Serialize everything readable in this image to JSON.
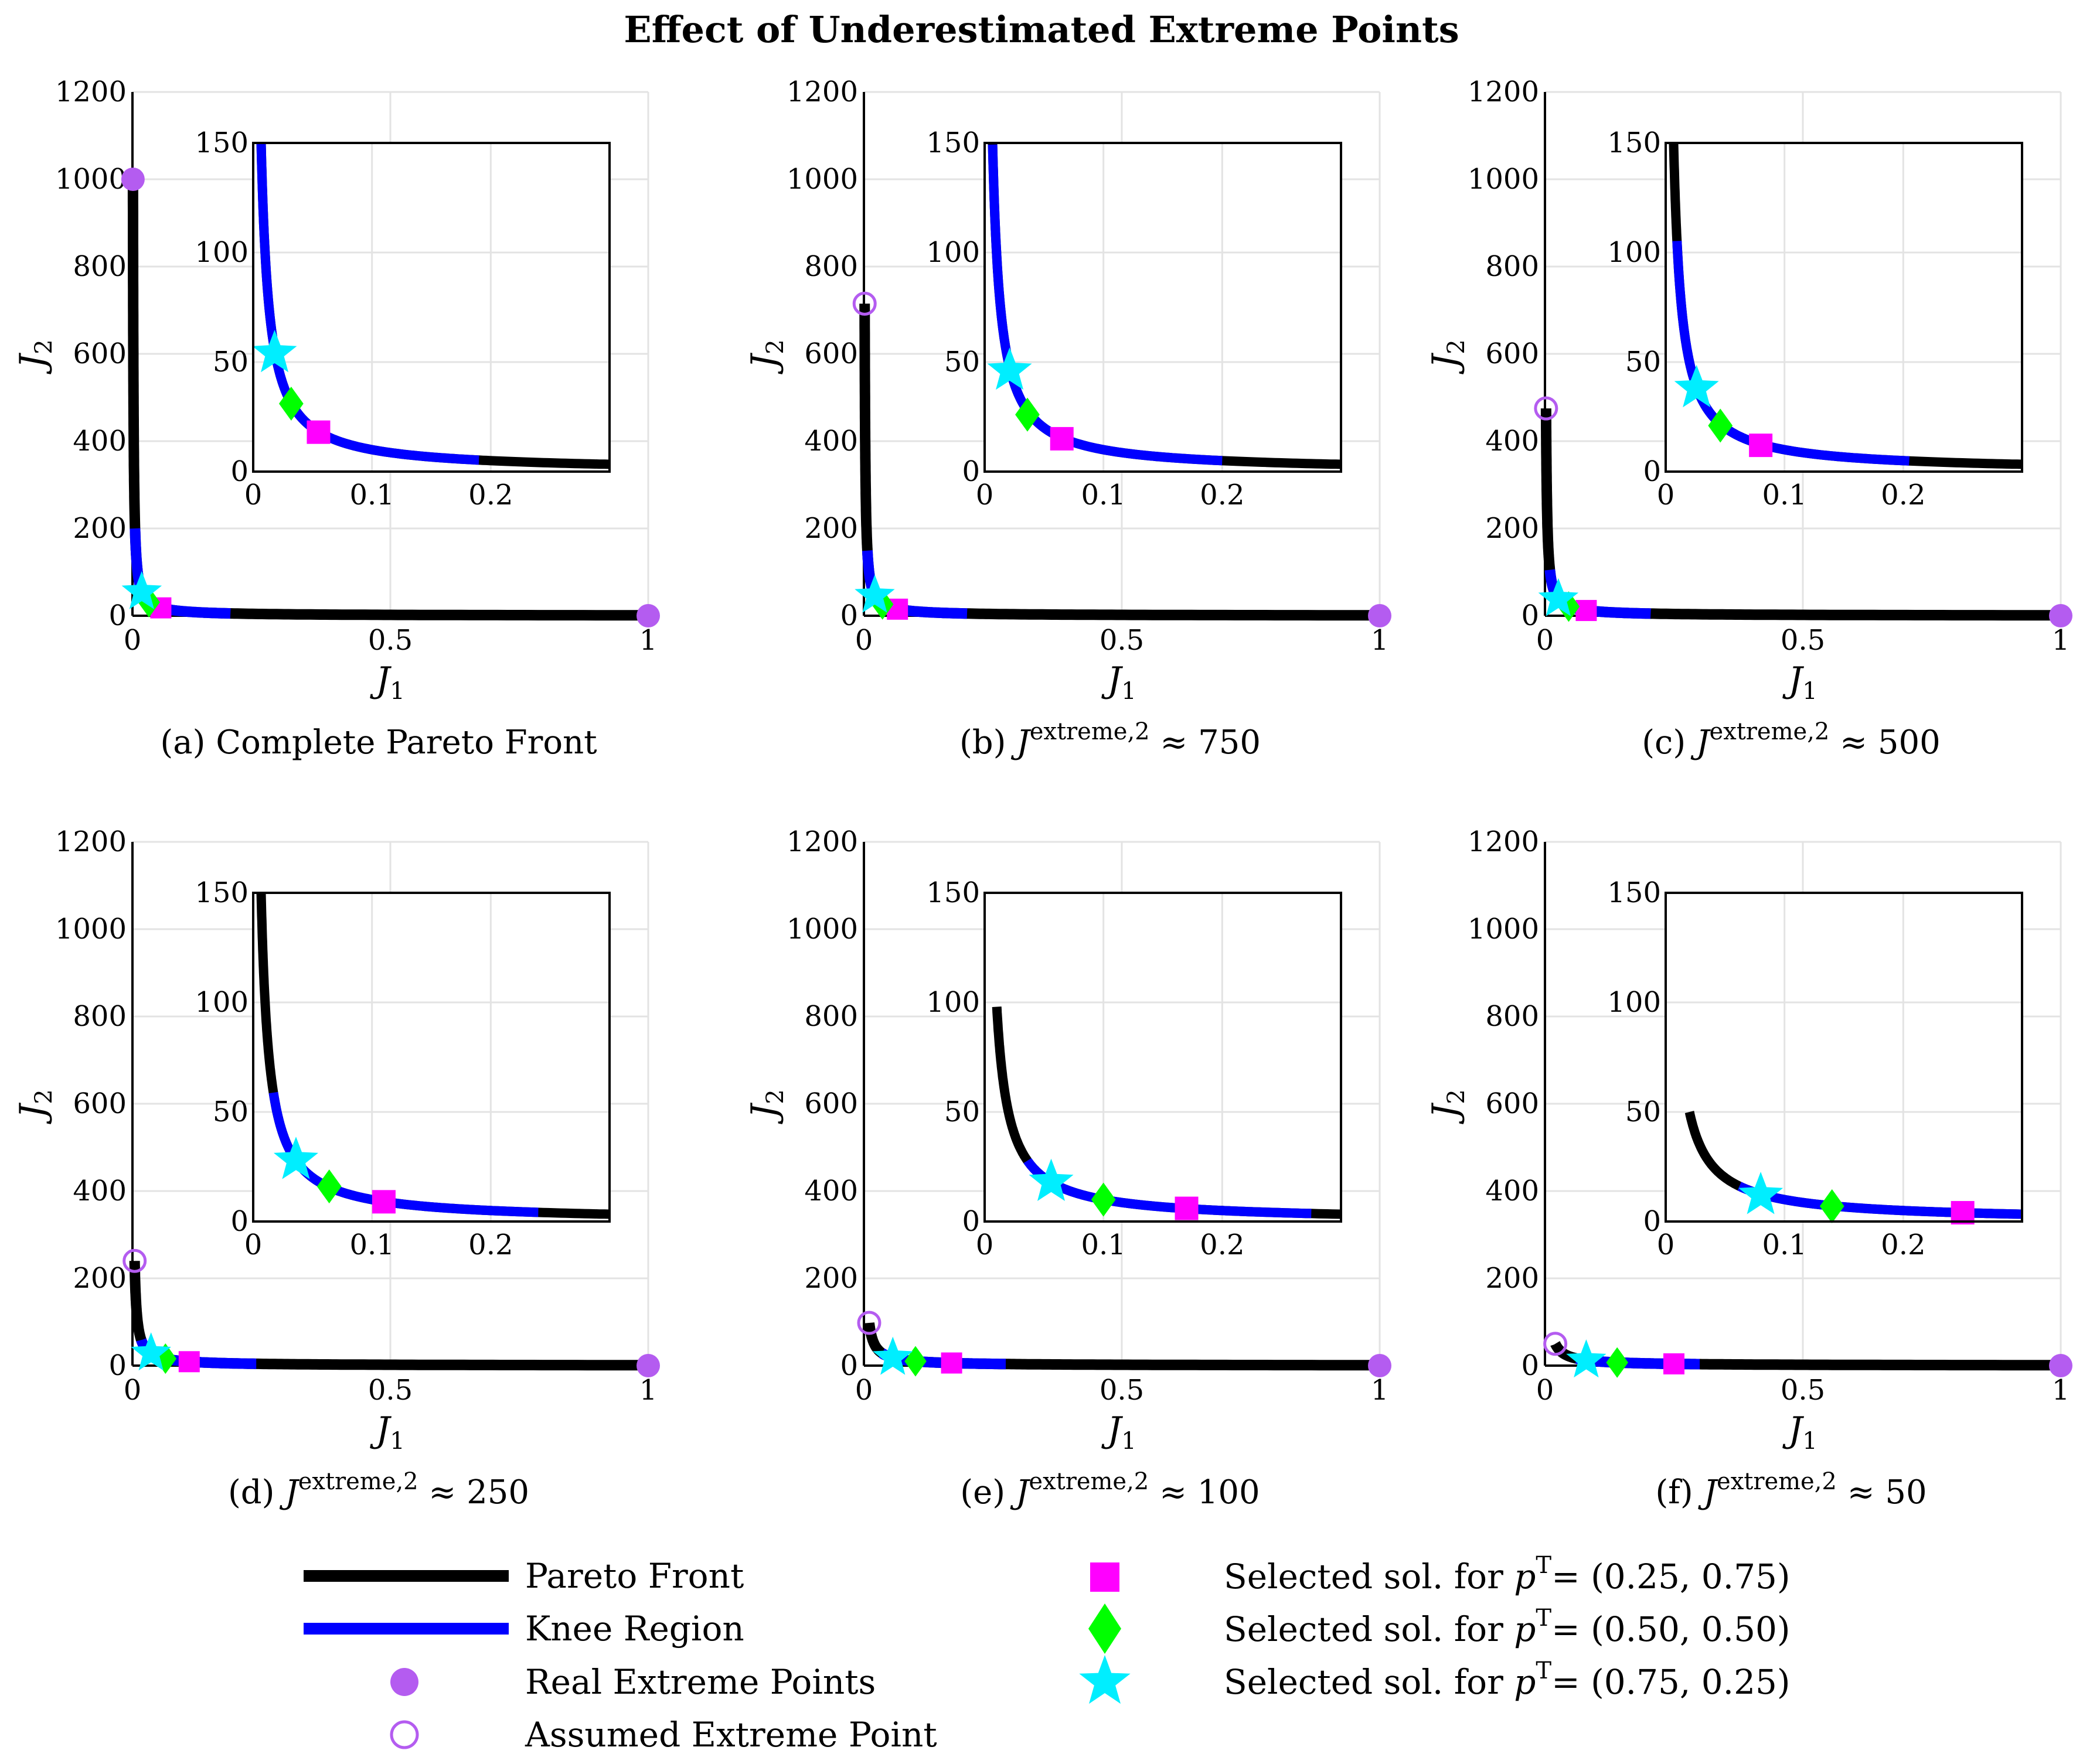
{
  "title": "Effect of Underestimated Extreme Points",
  "chart_data": {
    "type": "line",
    "title": "Effect of Underestimated Extreme Points",
    "xlabel": "J_1",
    "ylabel": "J_2",
    "main_axes": {
      "xlim": [
        0,
        1
      ],
      "ylim": [
        0,
        1200
      ],
      "xticks": [
        "0",
        "0.5",
        "1"
      ],
      "yticks": [
        "0",
        "200",
        "400",
        "600",
        "800",
        "1000",
        "1200"
      ]
    },
    "inset_axes": {
      "xlim": [
        0,
        0.3
      ],
      "ylim": [
        0,
        150
      ],
      "xticks": [
        "0",
        "0.1",
        "0.2"
      ],
      "yticks": [
        "0",
        "50",
        "100",
        "150"
      ]
    },
    "pareto_front": {
      "formula": "J2 = 1 / J1",
      "note": "J2 capped at each panel's assumed extreme value"
    },
    "real_extreme_points": [
      [
        0.001,
        1000
      ],
      [
        1,
        0
      ]
    ],
    "panels": [
      {
        "letter": "(a)",
        "caption": "Complete Pareto Front",
        "j_extreme": null,
        "caption_value": "",
        "assumed_extreme": null,
        "knee": [
          0.005,
          0.19
        ],
        "sol_025_075": [
          0.055,
          18
        ],
        "sol_050_050": [
          0.032,
          31
        ],
        "sol_075_025": [
          0.018,
          54
        ]
      },
      {
        "letter": "(b)",
        "caption": "J^{extreme,2} ≈ 750",
        "j_extreme": 715,
        "caption_value": "750",
        "assumed_extreme": [
          0.0014,
          715
        ],
        "knee": [
          0.0067,
          0.2
        ],
        "sol_025_075": [
          0.065,
          15
        ],
        "sol_050_050": [
          0.036,
          26
        ],
        "sol_075_025": [
          0.021,
          46
        ]
      },
      {
        "letter": "(c)",
        "caption": "J^{extreme,2} ≈ 500",
        "j_extreme": 475,
        "caption_value": "500",
        "assumed_extreme": [
          0.0021,
          475
        ],
        "knee": [
          0.0095,
          0.205
        ],
        "sol_025_075": [
          0.08,
          12
        ],
        "sol_050_050": [
          0.046,
          21
        ],
        "sol_075_025": [
          0.026,
          38
        ]
      },
      {
        "letter": "(d)",
        "caption": "J^{extreme,2} ≈ 250",
        "j_extreme": 240,
        "caption_value": "250",
        "assumed_extreme": [
          0.0042,
          240
        ],
        "knee": [
          0.017,
          0.24
        ],
        "sol_025_075": [
          0.11,
          9
        ],
        "sol_050_050": [
          0.064,
          16
        ],
        "sol_075_025": [
          0.036,
          28
        ]
      },
      {
        "letter": "(e)",
        "caption": "J^{extreme,2} ≈ 100",
        "j_extreme": 98,
        "caption_value": "100",
        "assumed_extreme": [
          0.0102,
          98
        ],
        "knee": [
          0.036,
          0.275
        ],
        "sol_025_075": [
          0.17,
          6
        ],
        "sol_050_050": [
          0.1,
          10
        ],
        "sol_075_025": [
          0.056,
          18
        ]
      },
      {
        "letter": "(f)",
        "caption": "J^{extreme,2} ≈ 50",
        "j_extreme": 50,
        "caption_value": "50",
        "assumed_extreme": [
          0.02,
          50
        ],
        "knee": [
          0.062,
          0.3
        ],
        "sol_025_075": [
          0.25,
          4
        ],
        "sol_050_050": [
          0.14,
          7
        ],
        "sol_075_025": [
          0.08,
          12
        ]
      }
    ],
    "caption_prefix": "J",
    "caption_superscript": "extreme,2",
    "caption_approx": "≈",
    "colors": {
      "pareto": "#000000",
      "knee": "#0000ff",
      "extreme": "#b45cf0",
      "sol_025_075": "#ff00ff",
      "sol_050_050": "#00ff00",
      "sol_075_025": "#00eeff",
      "grid": "#e3e3e3"
    }
  },
  "legend": {
    "pareto": "Pareto Front",
    "knee": "Knee Region",
    "real": "Real Extreme Points",
    "assumed": "Assumed Extreme Point",
    "sel_prefix": "Selected sol.  for ",
    "sel_p": "p",
    "sel_sup": "T",
    "sel_025": "= (0.25, 0.75)",
    "sel_050": "= (0.50, 0.50)",
    "sel_075": "= (0.75, 0.25)"
  }
}
